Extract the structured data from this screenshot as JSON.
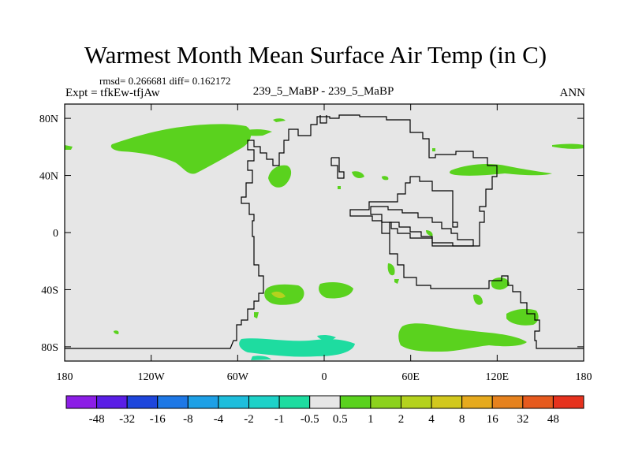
{
  "title": "Warmest Month Mean Surface Air Temp (in C)",
  "stats": "rmsd= 0.266681 diff= 0.162172",
  "expt": "Expt = tfkEw-tfjAw",
  "center_label": "239_5_MaBP - 239_5_MaBP",
  "season": "ANN",
  "map": {
    "x_ticks": [
      {
        "value": -180,
        "label": "180"
      },
      {
        "value": -120,
        "label": "120W"
      },
      {
        "value": -60,
        "label": "60W"
      },
      {
        "value": 0,
        "label": "0"
      },
      {
        "value": 60,
        "label": "60E"
      },
      {
        "value": 120,
        "label": "120E"
      },
      {
        "value": 180,
        "label": "180"
      }
    ],
    "y_ticks": [
      {
        "value": 80,
        "label": "80N"
      },
      {
        "value": 40,
        "label": "40N"
      },
      {
        "value": 0,
        "label": "0"
      },
      {
        "value": -40,
        "label": "40S"
      },
      {
        "value": -80,
        "label": "80S"
      }
    ],
    "lon_range": [
      -180,
      180
    ],
    "lat_range": [
      -90,
      90
    ],
    "background_color": "#e6e6e6",
    "coastline_color": "#000000"
  },
  "colorbar": {
    "colors": [
      "#8c1ee6",
      "#5a1ee6",
      "#1e46dc",
      "#1e78e6",
      "#1ea0e6",
      "#1ebedc",
      "#1ed2c8",
      "#1edca0",
      "#e6e6e6",
      "#5ad21e",
      "#8cd21e",
      "#b4d21e",
      "#d2c81e",
      "#e6aa1e",
      "#e6821e",
      "#e65a1e",
      "#e6321e"
    ],
    "labels": [
      "-48",
      "-32",
      "-16",
      "-8",
      "-4",
      "-2",
      "-1",
      "-0.5",
      "0.5",
      "1",
      "2",
      "4",
      "8",
      "16",
      "32",
      "48"
    ]
  }
}
